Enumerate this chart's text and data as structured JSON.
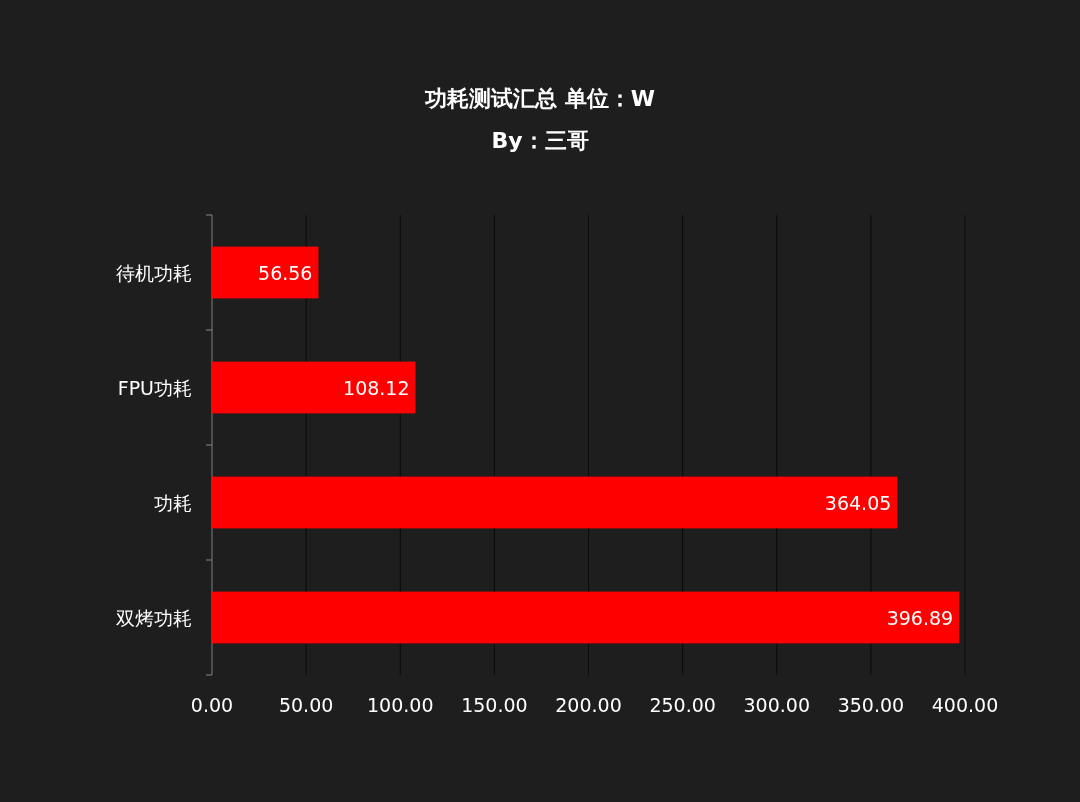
{
  "chart_data": {
    "type": "bar",
    "orientation": "horizontal",
    "title": "功耗测试汇总 单位：W",
    "subtitle": "By：三哥",
    "categories": [
      "待机功耗",
      "FPU功耗",
      "功耗",
      "双烤功耗"
    ],
    "values": [
      56.56,
      108.12,
      364.05,
      396.89
    ],
    "color": "#ff0000",
    "xlim": [
      0,
      400
    ],
    "xticks": [
      {
        "value": 0,
        "label": "0.00"
      },
      {
        "value": 50,
        "label": "50.00"
      },
      {
        "value": 100,
        "label": "100.00"
      },
      {
        "value": 150,
        "label": "150.00"
      },
      {
        "value": 200,
        "label": "200.00"
      },
      {
        "value": 250,
        "label": "250.00"
      },
      {
        "value": 300,
        "label": "300.00"
      },
      {
        "value": 350,
        "label": "350.00"
      },
      {
        "value": 400,
        "label": "400.00"
      }
    ],
    "grid": "x",
    "data_labels": true
  }
}
